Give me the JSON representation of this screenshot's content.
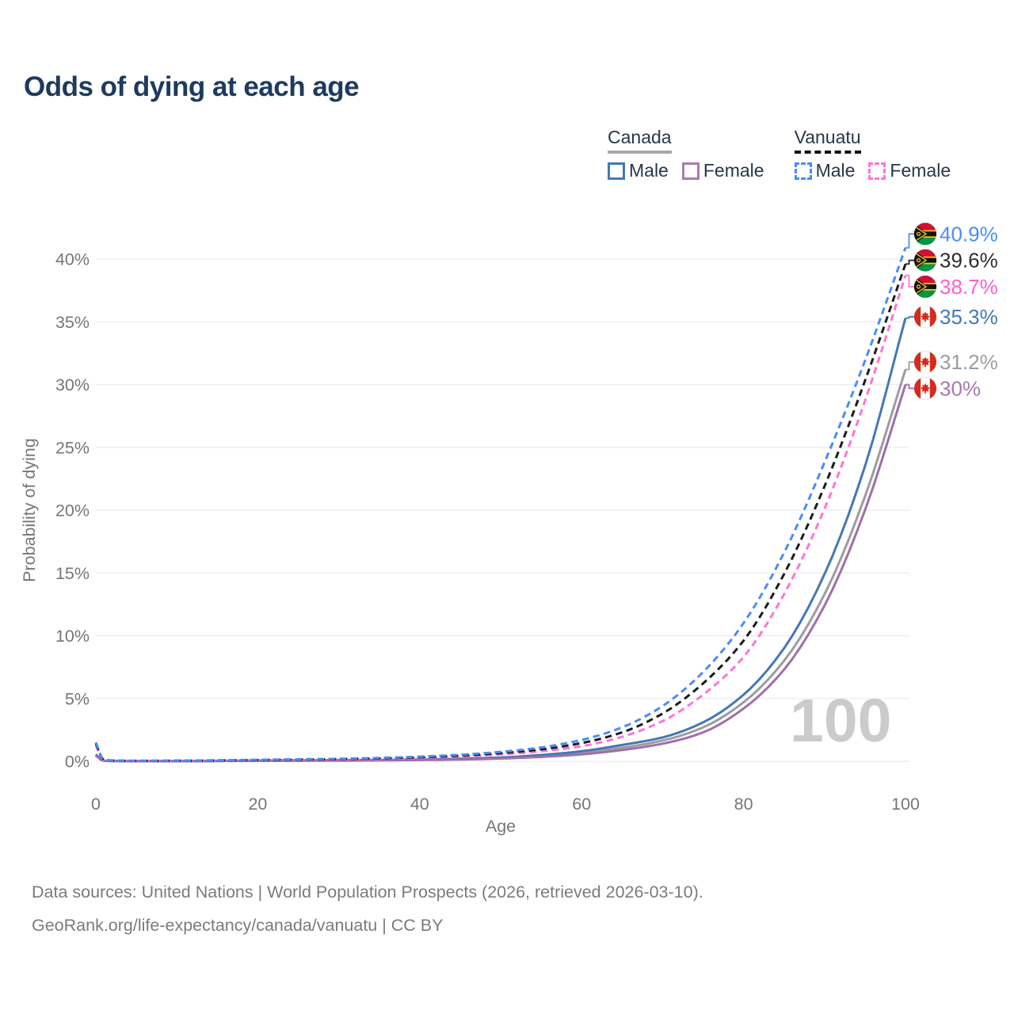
{
  "page": {
    "title": "Odds of dying at each age",
    "watermark_age": "100",
    "footer": {
      "line1": "Data sources: United Nations | World Population Prospects (2026, retrieved 2026-03-10).",
      "line2": "GeoRank.org/life-expectancy/canada/vanuatu | CC BY"
    }
  },
  "legend": {
    "groups": [
      {
        "label": "Canada",
        "line_style": "solid",
        "line_color": "#a9a9a9",
        "items": [
          {
            "label": "Male",
            "color": "#4478b6",
            "dashed": false
          },
          {
            "label": "Female",
            "color": "#a97cb0",
            "dashed": false
          }
        ]
      },
      {
        "label": "Vanuatu",
        "line_style": "dashed",
        "line_color": "#141414",
        "items": [
          {
            "label": "Male",
            "color": "#4a8cf7",
            "dashed": true
          },
          {
            "label": "Female",
            "color": "#ff74d8",
            "dashed": true
          }
        ]
      }
    ]
  },
  "chart_data": {
    "type": "line",
    "title": "Odds of dying at each age",
    "xlabel": "Age",
    "ylabel": "Probability of dying",
    "xlim": [
      0,
      100
    ],
    "ylim_pct": [
      0,
      42.5
    ],
    "x_ticks": [
      0,
      20,
      40,
      60,
      80,
      100
    ],
    "y_ticks_pct": [
      0,
      5,
      10,
      15,
      20,
      25,
      30,
      35,
      40
    ],
    "grid": "horizontal",
    "legend_position": "top-right",
    "ages": [
      0,
      1,
      5,
      10,
      15,
      20,
      25,
      30,
      35,
      40,
      45,
      50,
      55,
      60,
      65,
      70,
      75,
      80,
      85,
      90,
      95,
      100
    ],
    "series": [
      {
        "id": "vanuatu-male",
        "name": "Vanuatu Male",
        "country": "vanuatu",
        "color": "#4a8cf7",
        "label_color": "#4a8cf7",
        "dashed": true,
        "end_label": "40.9%",
        "end_value_pct": 40.9,
        "label_value_pct": 42.0,
        "values_pct": [
          1.5,
          0.1,
          0.04,
          0.05,
          0.08,
          0.12,
          0.16,
          0.2,
          0.27,
          0.37,
          0.52,
          0.75,
          1.1,
          1.7,
          2.7,
          4.4,
          7.1,
          11.0,
          16.6,
          23.8,
          31.9,
          40.9
        ]
      },
      {
        "id": "vanuatu-both",
        "name": "Vanuatu Both sexes",
        "country": "vanuatu",
        "color": "#1c1c1c",
        "label_color": "#2d2d2d",
        "dashed": true,
        "end_label": "39.6%",
        "end_value_pct": 39.6,
        "label_value_pct": 39.9,
        "values_pct": [
          1.4,
          0.09,
          0.035,
          0.045,
          0.07,
          0.1,
          0.13,
          0.17,
          0.23,
          0.32,
          0.45,
          0.65,
          0.95,
          1.45,
          2.3,
          3.8,
          6.2,
          9.6,
          14.9,
          21.9,
          30.3,
          39.6
        ]
      },
      {
        "id": "vanuatu-female",
        "name": "Vanuatu Female",
        "country": "vanuatu",
        "color": "#ff74d8",
        "label_color": "#ff5fd0",
        "dashed": true,
        "end_label": "38.7%",
        "end_value_pct": 38.7,
        "label_value_pct": 37.8,
        "values_pct": [
          1.3,
          0.08,
          0.03,
          0.04,
          0.06,
          0.08,
          0.11,
          0.14,
          0.19,
          0.27,
          0.38,
          0.55,
          0.8,
          1.2,
          1.95,
          3.2,
          5.3,
          8.3,
          13.3,
          20.1,
          28.7,
          38.7
        ]
      },
      {
        "id": "canada-male",
        "name": "Canada Male",
        "country": "canada",
        "color": "#4478b6",
        "label_color": "#4478b6",
        "dashed": false,
        "end_label": "35.3%",
        "end_value_pct": 35.3,
        "label_value_pct": 35.4,
        "values_pct": [
          0.55,
          0.04,
          0.01,
          0.01,
          0.03,
          0.06,
          0.08,
          0.09,
          0.11,
          0.14,
          0.2,
          0.3,
          0.5,
          0.8,
          1.3,
          1.9,
          3.1,
          5.3,
          9.0,
          14.9,
          23.5,
          35.3
        ]
      },
      {
        "id": "canada-both",
        "name": "Canada Both sexes",
        "country": "canada",
        "color": "#9c9ca1",
        "label_color": "#9c9ca1",
        "dashed": false,
        "end_label": "31.2%",
        "end_value_pct": 31.2,
        "label_value_pct": 31.8,
        "values_pct": [
          0.5,
          0.035,
          0.01,
          0.01,
          0.025,
          0.045,
          0.06,
          0.07,
          0.09,
          0.12,
          0.17,
          0.26,
          0.42,
          0.67,
          1.08,
          1.65,
          2.7,
          4.7,
          8.0,
          13.3,
          21.1,
          31.2
        ]
      },
      {
        "id": "canada-female",
        "name": "Canada Female",
        "country": "canada",
        "color": "#a06fa8",
        "label_color": "#a878ae",
        "dashed": false,
        "end_label": "30%",
        "end_value_pct": 30.0,
        "label_value_pct": 29.7,
        "values_pct": [
          0.45,
          0.03,
          0.008,
          0.008,
          0.02,
          0.03,
          0.04,
          0.05,
          0.07,
          0.1,
          0.14,
          0.22,
          0.35,
          0.55,
          0.9,
          1.4,
          2.3,
          4.2,
          7.3,
          12.4,
          20.0,
          30.0
        ]
      }
    ]
  }
}
